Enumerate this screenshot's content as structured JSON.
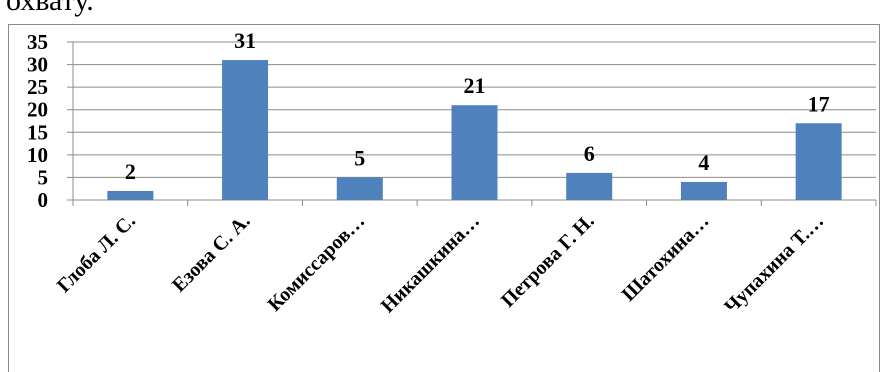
{
  "page": {
    "top_text": "охвату."
  },
  "chart_data": {
    "type": "bar",
    "categories": [
      "Глоба Л. С.",
      "Езова С. А.",
      "Комиссаров…",
      "Никашкина…",
      "Петрова Г. Н.",
      "Шатохина…",
      "Чупахина Т.…"
    ],
    "values": [
      2,
      31,
      5,
      21,
      6,
      4,
      17
    ],
    "ylim": [
      0,
      35
    ],
    "yticks": [
      0,
      5,
      10,
      15,
      20,
      25,
      30,
      35
    ],
    "grid": true,
    "legend": "none",
    "bar_color": "#4f81bd",
    "grid_color": "#8c8c8c"
  }
}
